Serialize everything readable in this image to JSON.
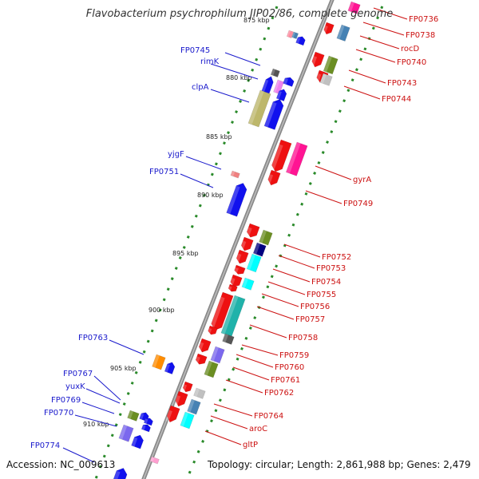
{
  "title": "Flavobacterium psychrophilum JIP02/86, complete genome",
  "accession": "Accession: NC_009613",
  "topology": "Topology: circular; Length: 2,861,988 bp; Genes: 2,479",
  "colors": {
    "blue": "#1111ee",
    "red": "#ee1111",
    "backbone": "#888888",
    "tick": "#2a8a2a",
    "label_left": "#1a1acc",
    "label_right": "#cc1111"
  },
  "kbp_ticks": [
    {
      "kbp": 875,
      "label": "875 kbp"
    },
    {
      "kbp": 880,
      "label": "880 kbp"
    },
    {
      "kbp": 885,
      "label": "885 kbp"
    },
    {
      "kbp": 890,
      "label": "890 kbp"
    },
    {
      "kbp": 895,
      "label": "895 kbp"
    },
    {
      "kbp": 900,
      "label": "900 kbp"
    },
    {
      "kbp": 905,
      "label": "905 kbp"
    },
    {
      "kbp": 910,
      "label": "910 kbp"
    }
  ],
  "left_labels": [
    {
      "text": "FP0745"
    },
    {
      "text": "rimK"
    },
    {
      "text": "clpA"
    },
    {
      "text": "yjgF"
    },
    {
      "text": "FP0751"
    },
    {
      "text": "FP0763"
    },
    {
      "text": "FP0767"
    },
    {
      "text": "yuxK"
    },
    {
      "text": "FP0769"
    },
    {
      "text": "FP0770"
    },
    {
      "text": "FP0774"
    }
  ],
  "right_labels": [
    {
      "text": "FP0736"
    },
    {
      "text": "FP0738"
    },
    {
      "text": "rocD"
    },
    {
      "text": "FP0740"
    },
    {
      "text": "FP0743"
    },
    {
      "text": "FP0744"
    },
    {
      "text": "gyrA"
    },
    {
      "text": "FP0749"
    },
    {
      "text": "FP0752"
    },
    {
      "text": "FP0753"
    },
    {
      "text": "FP0754"
    },
    {
      "text": "FP0755"
    },
    {
      "text": "FP0756"
    },
    {
      "text": "FP0757"
    },
    {
      "text": "FP0758"
    },
    {
      "text": "FP0759"
    },
    {
      "text": "FP0760"
    },
    {
      "text": "FP0761"
    },
    {
      "text": "FP0762"
    },
    {
      "text": "FP0764"
    },
    {
      "text": "aroC"
    },
    {
      "text": "gltP"
    }
  ]
}
